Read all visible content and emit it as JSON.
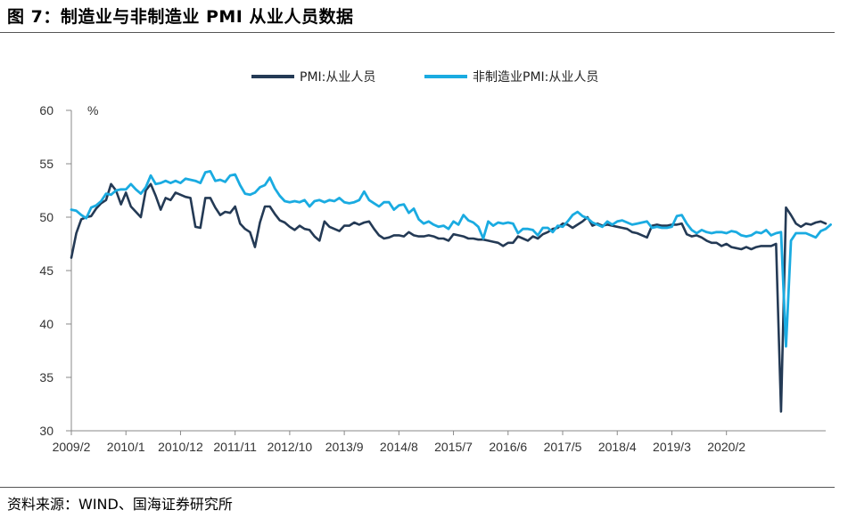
{
  "title": "图 7：制造业与非制造业 PMI 从业人员数据",
  "source": "资料来源：WIND、国海证券研究所",
  "chart_data": {
    "type": "line",
    "ylabel": "%",
    "ylim": [
      30,
      60
    ],
    "yticks": [
      30,
      35,
      40,
      45,
      50,
      55,
      60
    ],
    "xticks": [
      "2009/2",
      "2010/1",
      "2010/12",
      "2011/11",
      "2012/10",
      "2013/9",
      "2014/8",
      "2015/7",
      "2016/6",
      "2017/5",
      "2018/4",
      "2019/3",
      "2020/2"
    ],
    "legend_position": "top",
    "x_start": "2009-02",
    "series": [
      {
        "name": "PMI:从业人员",
        "color": "#243a55",
        "values": [
          46.2,
          48.5,
          49.8,
          50.0,
          50.1,
          50.8,
          51.3,
          51.6,
          53.1,
          52.5,
          51.2,
          52.3,
          51.0,
          50.5,
          50.0,
          52.5,
          53.1,
          52.0,
          50.7,
          51.8,
          51.6,
          52.3,
          52.1,
          51.9,
          51.8,
          49.1,
          49.0,
          51.8,
          51.8,
          50.9,
          50.2,
          50.5,
          50.4,
          51.0,
          49.4,
          48.9,
          48.6,
          47.2,
          49.5,
          51.0,
          51.0,
          50.3,
          49.7,
          49.5,
          49.1,
          48.8,
          49.2,
          48.9,
          48.8,
          48.2,
          47.8,
          49.6,
          49.1,
          48.9,
          48.7,
          49.2,
          49.2,
          49.5,
          49.3,
          49.5,
          49.6,
          48.9,
          48.3,
          48.0,
          48.1,
          48.3,
          48.3,
          48.2,
          48.6,
          48.3,
          48.2,
          48.2,
          48.3,
          48.2,
          48.0,
          48.0,
          47.8,
          48.4,
          48.3,
          48.2,
          48.0,
          48.0,
          47.9,
          47.9,
          47.8,
          47.7,
          47.6,
          47.3,
          47.6,
          47.6,
          48.2,
          48.0,
          47.8,
          48.2,
          48.0,
          48.4,
          48.6,
          48.9,
          49.0,
          49.4,
          49.3,
          49.0,
          49.3,
          49.6,
          50.0,
          49.2,
          49.4,
          49.2,
          49.3,
          49.2,
          49.1,
          49.0,
          48.9,
          48.6,
          48.5,
          48.3,
          48.1,
          49.2,
          49.3,
          49.2,
          49.2,
          49.3,
          49.3,
          49.4,
          48.4,
          48.2,
          48.3,
          48.1,
          47.8,
          47.6,
          47.6,
          47.3,
          47.5,
          47.2,
          47.1,
          47.0,
          47.2,
          47.0,
          47.2,
          47.3,
          47.3,
          47.3,
          47.5,
          31.8,
          50.9,
          50.2,
          49.4,
          49.1,
          49.4,
          49.3,
          49.5,
          49.6,
          49.4
        ],
        "lw": 2.6
      },
      {
        "name": "非制造业PMI:从业人员",
        "color": "#1aabe1",
        "values": [
          50.7,
          50.6,
          50.2,
          49.9,
          50.9,
          51.1,
          51.5,
          52.2,
          52.1,
          52.5,
          52.6,
          52.6,
          53.1,
          52.6,
          52.2,
          52.8,
          53.9,
          53.1,
          53.2,
          53.4,
          53.2,
          53.4,
          53.2,
          53.6,
          53.5,
          53.4,
          53.2,
          54.2,
          54.3,
          53.4,
          53.5,
          53.3,
          53.9,
          54.0,
          53.0,
          52.2,
          52.1,
          52.3,
          52.8,
          53.0,
          53.7,
          52.7,
          52.0,
          51.5,
          51.4,
          51.5,
          51.4,
          51.6,
          51.0,
          51.5,
          51.6,
          51.4,
          51.6,
          51.5,
          51.8,
          51.4,
          51.3,
          51.4,
          51.6,
          52.4,
          51.6,
          51.3,
          51.0,
          51.4,
          51.4,
          50.7,
          51.1,
          51.2,
          50.4,
          50.8,
          49.8,
          49.4,
          49.6,
          49.3,
          49.1,
          49.2,
          48.9,
          49.6,
          49.3,
          50.2,
          49.7,
          49.5,
          49.1,
          48.0,
          49.6,
          49.2,
          49.5,
          49.4,
          49.5,
          49.4,
          48.5,
          48.9,
          48.9,
          48.8,
          48.3,
          49.0,
          49.0,
          48.6,
          49.2,
          49.1,
          49.6,
          50.2,
          50.5,
          50.1,
          49.9,
          49.5,
          49.3,
          49.1,
          49.6,
          49.3,
          49.6,
          49.7,
          49.5,
          49.3,
          49.4,
          49.5,
          49.6,
          49.0,
          49.1,
          49.0,
          49.0,
          49.1,
          50.1,
          50.2,
          49.4,
          48.8,
          48.5,
          48.8,
          48.6,
          48.5,
          48.6,
          48.6,
          48.5,
          48.7,
          48.6,
          48.3,
          48.2,
          48.3,
          48.6,
          48.5,
          48.8,
          48.3,
          48.5,
          48.6,
          37.9,
          47.8,
          48.5,
          48.5,
          48.5,
          48.3,
          48.1,
          48.7,
          48.9,
          49.3
        ]
      }
    ]
  }
}
